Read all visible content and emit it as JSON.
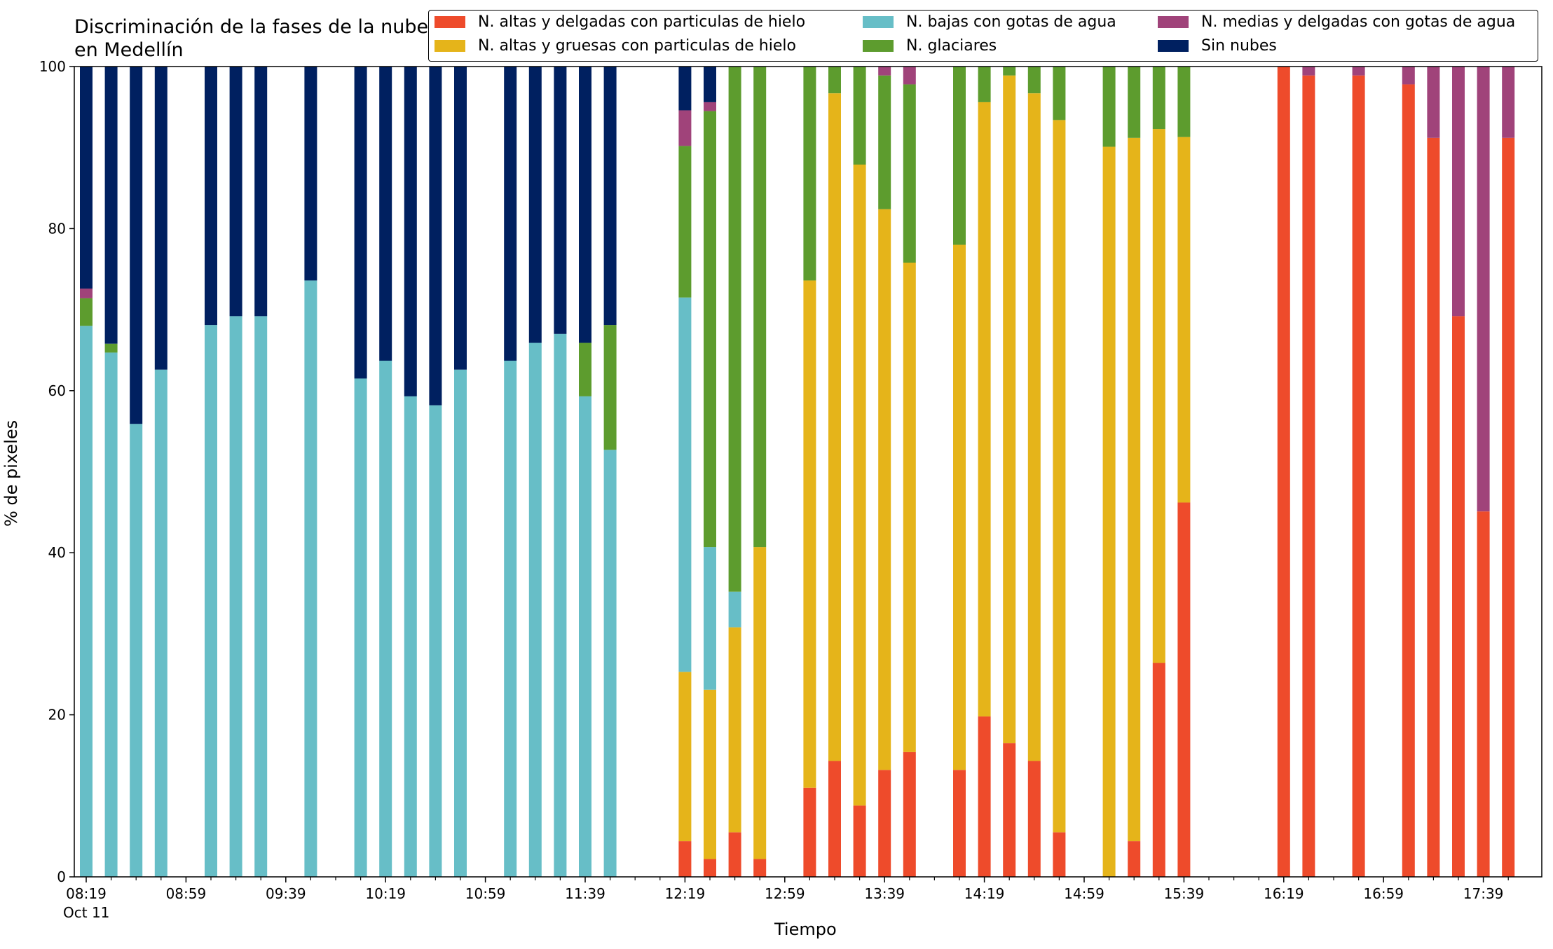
{
  "chart_data": {
    "type": "bar",
    "stacked": true,
    "title": "Discriminación de la fases de la nube en Medellín",
    "xlabel": "Tiempo",
    "ylabel": "% de pixeles",
    "ylim": [
      0,
      100
    ],
    "yticks": [
      "0",
      "20",
      "40",
      "60",
      "80",
      "100"
    ],
    "x_interval_minutes": 10,
    "x_start": "08:19",
    "x_end": "17:49",
    "x_ticks_labeled": [
      "08:19",
      "08:59",
      "09:39",
      "10:19",
      "10:59",
      "11:39",
      "12:19",
      "12:59",
      "13:39",
      "14:19",
      "14:59",
      "15:39",
      "16:19",
      "16:59",
      "17:39"
    ],
    "x_date_label": "Oct 11",
    "legend_position": "top-right",
    "grid": false,
    "series": [
      {
        "name": "N. altas y delgadas con particulas de hielo",
        "color": "#ee4b2b"
      },
      {
        "name": "N. altas y gruesas con particulas de hielo",
        "color": "#e5b41a"
      },
      {
        "name": "N. bajas con gotas de agua",
        "color": "#67bec7"
      },
      {
        "name": "N. glaciares",
        "color": "#5d9c2e"
      },
      {
        "name": "N. medias y delgadas con gotas de agua",
        "color": "#a0437a"
      },
      {
        "name": "Sin nubes",
        "color": "#002060"
      }
    ],
    "x": [
      "08:19",
      "08:29",
      "08:39",
      "08:49",
      "09:09",
      "09:19",
      "09:29",
      "09:49",
      "10:09",
      "10:19",
      "10:29",
      "10:39",
      "10:49",
      "11:09",
      "11:19",
      "11:29",
      "11:39",
      "11:49",
      "12:19",
      "12:29",
      "12:39",
      "12:49",
      "13:09",
      "13:19",
      "13:29",
      "13:39",
      "13:49",
      "14:09",
      "14:19",
      "14:29",
      "14:39",
      "14:49",
      "15:09",
      "15:19",
      "15:29",
      "15:39",
      "16:19",
      "16:29",
      "16:49",
      "17:09",
      "17:19",
      "17:29",
      "17:39",
      "17:49"
    ],
    "values": [
      [
        0,
        0,
        68,
        3.4,
        1.2,
        27.4
      ],
      [
        0,
        0,
        64.7,
        1.1,
        0,
        34.2
      ],
      [
        0,
        0,
        55.9,
        0,
        0,
        44.1
      ],
      [
        0,
        0,
        62.6,
        0,
        0,
        37.4
      ],
      [
        0,
        0,
        68.1,
        0,
        0,
        31.9
      ],
      [
        0,
        0,
        69.2,
        0,
        0,
        30.8
      ],
      [
        0,
        0,
        69.2,
        0,
        0,
        30.8
      ],
      [
        0,
        0,
        73.6,
        0,
        0,
        26.4
      ],
      [
        0,
        0,
        61.5,
        0,
        0,
        38.5
      ],
      [
        0,
        0,
        63.7,
        0,
        0,
        36.3
      ],
      [
        0,
        0,
        59.3,
        0,
        0,
        40.7
      ],
      [
        0,
        0,
        58.2,
        0,
        0,
        41.8
      ],
      [
        0,
        0,
        62.6,
        0,
        0,
        37.4
      ],
      [
        0,
        0,
        63.7,
        0,
        0,
        36.3
      ],
      [
        0,
        0,
        65.9,
        0,
        0,
        34.1
      ],
      [
        0,
        0,
        67,
        0,
        0,
        33
      ],
      [
        0,
        0,
        59.3,
        6.6,
        0,
        34.1
      ],
      [
        0,
        0,
        52.7,
        15.4,
        0,
        31.9
      ],
      [
        4.4,
        20.9,
        46.2,
        18.7,
        4.4,
        5.4
      ],
      [
        2.2,
        20.9,
        17.6,
        53.8,
        1.1,
        4.4
      ],
      [
        5.5,
        25.3,
        4.4,
        64.8,
        0,
        0
      ],
      [
        2.2,
        38.5,
        0,
        59.3,
        0,
        0
      ],
      [
        11,
        62.6,
        0,
        26.4,
        0,
        0
      ],
      [
        14.3,
        82.4,
        0,
        3.3,
        0,
        0
      ],
      [
        8.8,
        79.1,
        0,
        12.1,
        0,
        0
      ],
      [
        13.2,
        69.2,
        0,
        16.5,
        1.1,
        0
      ],
      [
        15.4,
        60.4,
        0,
        22,
        2.2,
        0
      ],
      [
        13.2,
        64.8,
        0,
        22,
        0,
        0
      ],
      [
        19.8,
        75.8,
        0,
        4.4,
        0,
        0
      ],
      [
        16.5,
        82.4,
        0,
        1.1,
        0,
        0
      ],
      [
        14.3,
        82.4,
        0,
        3.3,
        0,
        0
      ],
      [
        5.5,
        87.9,
        0,
        6.6,
        0,
        0
      ],
      [
        0,
        90.1,
        0,
        9.9,
        0,
        0
      ],
      [
        4.4,
        86.8,
        0,
        8.8,
        0,
        0
      ],
      [
        26.4,
        65.9,
        0,
        7.7,
        0,
        0
      ],
      [
        46.2,
        45.1,
        0,
        8.7,
        0,
        0
      ],
      [
        100,
        0,
        0,
        0,
        0,
        0
      ],
      [
        98.9,
        0,
        0,
        0,
        1.1,
        0
      ],
      [
        98.9,
        0,
        0,
        0,
        1.1,
        0
      ],
      [
        97.8,
        0,
        0,
        0,
        2.2,
        0
      ],
      [
        91.2,
        0,
        0,
        0,
        8.8,
        0
      ],
      [
        69.2,
        0,
        0,
        0,
        30.8,
        0
      ],
      [
        45.1,
        0,
        0,
        0,
        54.9,
        0
      ],
      [
        91.2,
        0,
        0,
        0,
        8.8,
        0
      ]
    ]
  }
}
